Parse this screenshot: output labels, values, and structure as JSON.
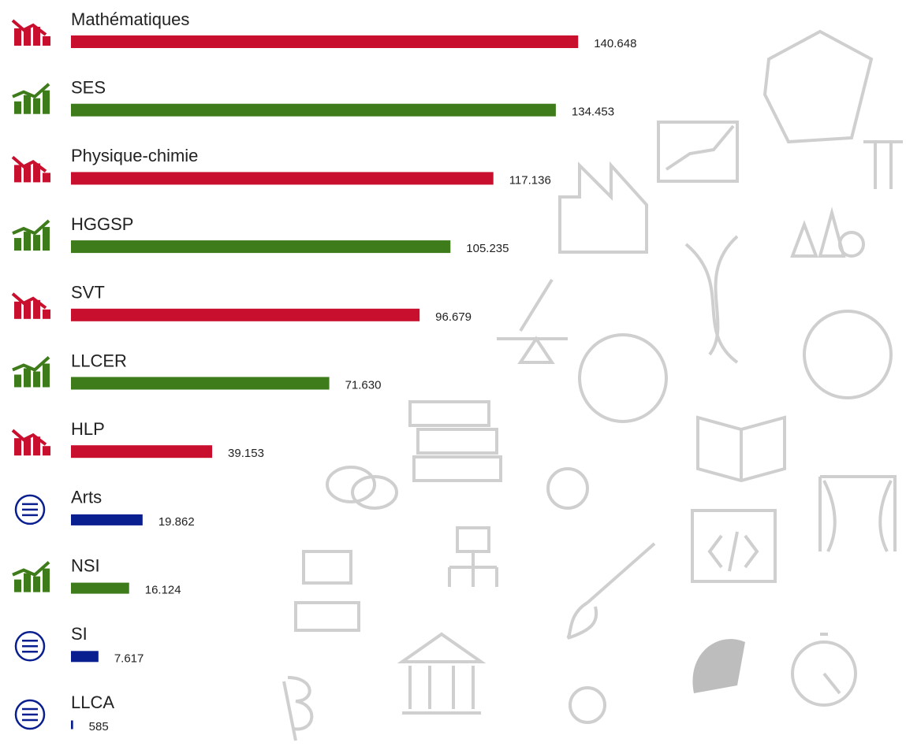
{
  "chart_data": {
    "type": "bar",
    "categories": [
      "Mathématiques",
      "SES",
      "Physique-chimie",
      "HGGSP",
      "SVT",
      "LLCER",
      "HLP",
      "Arts",
      "NSI",
      "SI",
      "LLCA"
    ],
    "values": [
      140648,
      134453,
      117136,
      105235,
      96679,
      71630,
      39153,
      19862,
      16124,
      7617,
      585
    ],
    "value_labels": [
      "140.648",
      "134.453",
      "117.136",
      "105.235",
      "96.679",
      "71.630",
      "39.153",
      "19.862",
      "16.124",
      "7.617",
      "585"
    ],
    "colors": [
      "#c8102e",
      "#3e7b1b",
      "#c8102e",
      "#3e7b1b",
      "#c8102e",
      "#3e7b1b",
      "#c8102e",
      "#0a1f8f",
      "#3e7b1b",
      "#0a1f8f",
      "#0a1f8f"
    ],
    "xlim": [
      0,
      150000
    ]
  }
}
